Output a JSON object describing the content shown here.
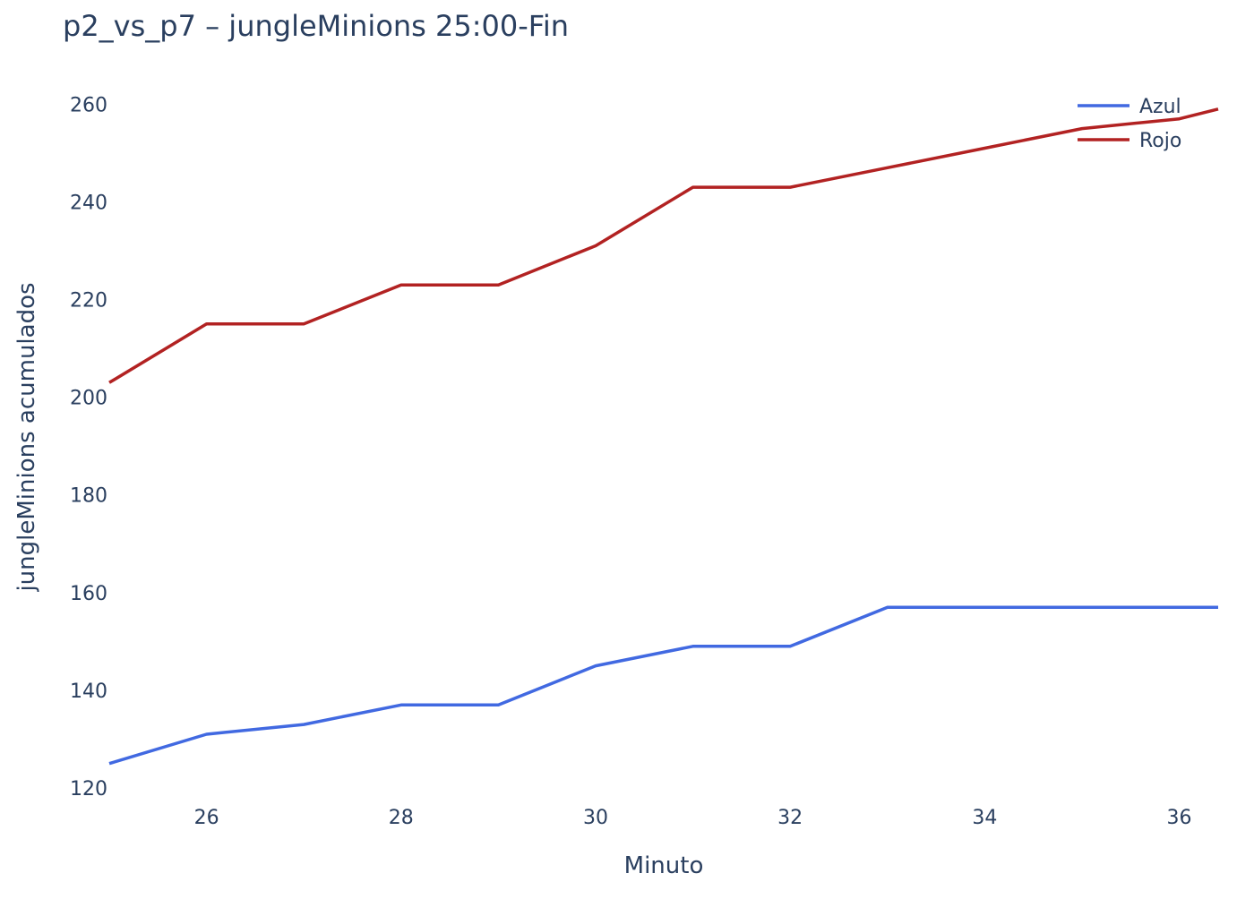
{
  "chart_data": {
    "type": "line",
    "title": "p2_vs_p7 – jungleMinions 25:00-Fin",
    "xlabel": "Minuto",
    "ylabel": "jungleMinions acumulados",
    "x": [
      25,
      26,
      27,
      28,
      29,
      30,
      31,
      32,
      33,
      34,
      35,
      36,
      36.4
    ],
    "xlim": [
      25,
      36.4
    ],
    "ylim": [
      120,
      263
    ],
    "xticks": [
      26,
      28,
      30,
      32,
      34,
      36
    ],
    "yticks": [
      120,
      140,
      160,
      180,
      200,
      220,
      240,
      260
    ],
    "grid": false,
    "legend_position": "top-right",
    "series": [
      {
        "name": "Azul",
        "color": "#4169e1",
        "values": [
          125,
          131,
          133,
          137,
          137,
          145,
          149,
          149,
          157,
          157,
          157,
          157,
          157
        ]
      },
      {
        "name": "Rojo",
        "color": "#b22222",
        "values": [
          203,
          215,
          215,
          223,
          223,
          231,
          243,
          243,
          247,
          251,
          255,
          257,
          259
        ]
      }
    ]
  }
}
